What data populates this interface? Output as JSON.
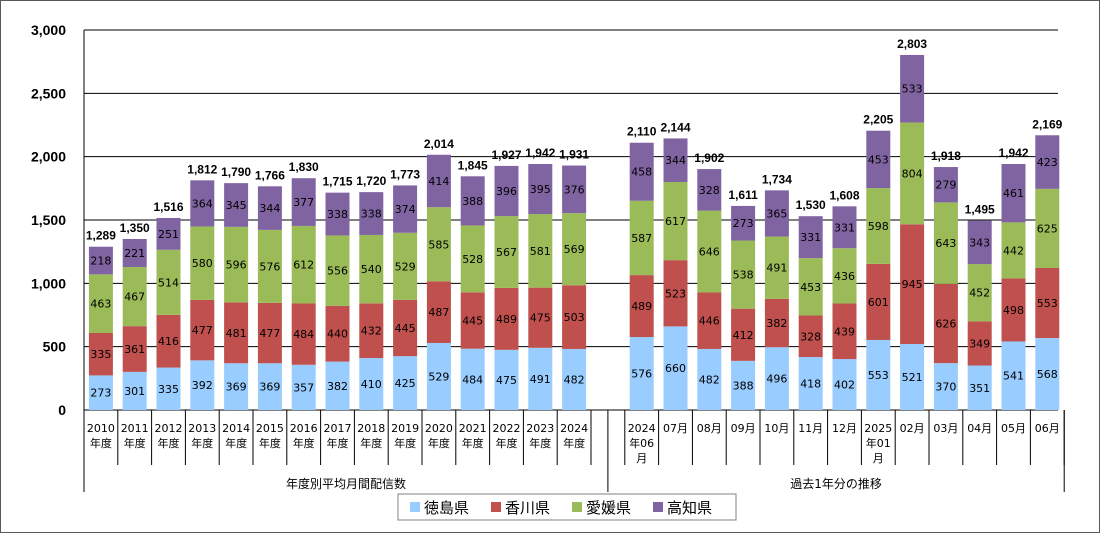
{
  "chart_data": {
    "type": "bar",
    "stacked": true,
    "ylim": [
      0,
      3000
    ],
    "yticks": [
      "0",
      "500",
      "1,000",
      "1,500",
      "2,000",
      "2,500",
      "3,000"
    ],
    "legend_position": "bottom",
    "groups": [
      {
        "label": "年度別平均月間配信数",
        "categories": [
          {
            "label": "2010\n年度",
            "values": [
              273,
              335,
              463,
              218
            ],
            "total": "1,289"
          },
          {
            "label": "2011\n年度",
            "values": [
              301,
              361,
              467,
              221
            ],
            "total": "1,350"
          },
          {
            "label": "2012\n年度",
            "values": [
              335,
              416,
              514,
              251
            ],
            "total": "1,516"
          },
          {
            "label": "2013\n年度",
            "values": [
              392,
              477,
              580,
              364
            ],
            "total": "1,812"
          },
          {
            "label": "2014\n年度",
            "values": [
              369,
              481,
              596,
              345
            ],
            "total": "1,790"
          },
          {
            "label": "2015\n年度",
            "values": [
              369,
              477,
              576,
              344
            ],
            "total": "1,766"
          },
          {
            "label": "2016\n年度",
            "values": [
              357,
              484,
              612,
              377
            ],
            "total": "1,830"
          },
          {
            "label": "2017\n年度",
            "values": [
              382,
              440,
              556,
              338
            ],
            "total": "1,715"
          },
          {
            "label": "2018\n年度",
            "values": [
              410,
              432,
              540,
              338
            ],
            "total": "1,720"
          },
          {
            "label": "2019\n年度",
            "values": [
              425,
              445,
              529,
              374
            ],
            "total": "1,773"
          },
          {
            "label": "2020\n年度",
            "values": [
              529,
              487,
              585,
              414
            ],
            "total": "2,014"
          },
          {
            "label": "2021\n年度",
            "values": [
              484,
              445,
              528,
              388
            ],
            "total": "1,845"
          },
          {
            "label": "2022\n年度",
            "values": [
              475,
              489,
              567,
              396
            ],
            "total": "1,927"
          },
          {
            "label": "2023\n年度",
            "values": [
              491,
              475,
              581,
              395
            ],
            "total": "1,942"
          },
          {
            "label": "2024\n年度",
            "values": [
              482,
              503,
              569,
              376
            ],
            "total": "1,931"
          }
        ]
      },
      {
        "label": "過去1年分の推移",
        "categories": [
          {
            "label": "2024\n年06\n月",
            "values": [
              576,
              489,
              587,
              458
            ],
            "total": "2,110"
          },
          {
            "label": "07月",
            "values": [
              660,
              523,
              617,
              344
            ],
            "total": "2,144"
          },
          {
            "label": "08月",
            "values": [
              482,
              446,
              646,
              328
            ],
            "total": "1,902"
          },
          {
            "label": "09月",
            "values": [
              388,
              412,
              538,
              273
            ],
            "total": "1,611"
          },
          {
            "label": "10月",
            "values": [
              496,
              382,
              491,
              365
            ],
            "total": "1,734"
          },
          {
            "label": "11月",
            "values": [
              418,
              328,
              453,
              331
            ],
            "total": "1,530"
          },
          {
            "label": "12月",
            "values": [
              402,
              439,
              436,
              331
            ],
            "total": "1,608"
          },
          {
            "label": "2025\n年01\n月",
            "values": [
              553,
              601,
              598,
              453
            ],
            "total": "2,205"
          },
          {
            "label": "02月",
            "values": [
              521,
              945,
              804,
              533
            ],
            "total": "2,803"
          },
          {
            "label": "03月",
            "values": [
              370,
              626,
              643,
              279
            ],
            "total": "1,918"
          },
          {
            "label": "04月",
            "values": [
              351,
              349,
              452,
              343
            ],
            "total": "1,495"
          },
          {
            "label": "05月",
            "values": [
              541,
              498,
              442,
              461
            ],
            "total": "1,942"
          },
          {
            "label": "06月",
            "values": [
              568,
              553,
              625,
              423
            ],
            "total": "2,169"
          }
        ]
      }
    ],
    "series": [
      {
        "name": "徳島県",
        "color": "#99ccff"
      },
      {
        "name": "香川県",
        "color": "#c0504d"
      },
      {
        "name": "愛媛県",
        "color": "#9bbb59"
      },
      {
        "name": "高知県",
        "color": "#8064a2"
      }
    ]
  }
}
